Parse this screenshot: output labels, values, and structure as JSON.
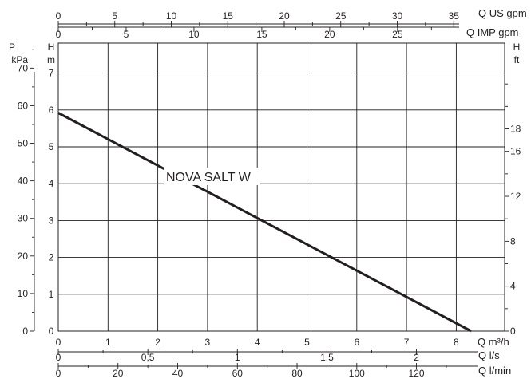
{
  "chart_data": {
    "type": "line",
    "series": [
      {
        "name": "NOVA SALT W",
        "x": [
          0,
          8.3
        ],
        "y": [
          5.92,
          0
        ],
        "color": "#231f20"
      }
    ],
    "xlim": [
      0,
      9
    ],
    "ylim": [
      0,
      8
    ],
    "grid": true,
    "axes": {
      "bottom_primary": {
        "label": "Q m³/h",
        "ticks": [
          0,
          1,
          2,
          3,
          4,
          5,
          6,
          7,
          8
        ]
      },
      "bottom_secondary": {
        "label": "Q l/s",
        "ticks": [
          "0",
          "0,5",
          "1",
          "1,5",
          "2"
        ],
        "values": [
          0,
          0.5,
          1,
          1.5,
          2
        ]
      },
      "bottom_tertiary": {
        "label": "Q l/min",
        "ticks": [
          0,
          20,
          40,
          60,
          80,
          100,
          120
        ],
        "values": [
          0,
          20,
          40,
          60,
          80,
          100,
          120
        ]
      },
      "top_primary": {
        "label": "Q US gpm",
        "ticks": [
          0,
          5,
          10,
          15,
          20,
          25,
          30,
          35
        ],
        "values": [
          0,
          5,
          10,
          15,
          20,
          25,
          30,
          35
        ]
      },
      "top_secondary": {
        "label": "Q IMP gpm",
        "ticks": [
          0,
          5,
          10,
          15,
          20,
          25
        ],
        "values": [
          0,
          5,
          10,
          15,
          20,
          25
        ]
      },
      "left_primary": {
        "label_top": "H",
        "label_bottom": "m",
        "ticks": [
          0,
          1,
          2,
          3,
          4,
          5,
          6,
          7
        ]
      },
      "left_secondary": {
        "label_top": "P",
        "label_bottom": "kPa",
        "ticks": [
          0,
          10,
          20,
          30,
          40,
          50,
          60,
          70
        ],
        "values": [
          0,
          10,
          20,
          30,
          40,
          50,
          60,
          70
        ]
      },
      "right": {
        "label_top": "H",
        "label_bottom": "ft",
        "ticks": [
          0,
          4,
          8,
          12,
          16,
          18
        ],
        "values": [
          0,
          4,
          8,
          12,
          16,
          18
        ]
      }
    },
    "annotations": [
      {
        "text": "NOVA SALT W",
        "x": 2.2,
        "y": 4.2
      }
    ]
  }
}
